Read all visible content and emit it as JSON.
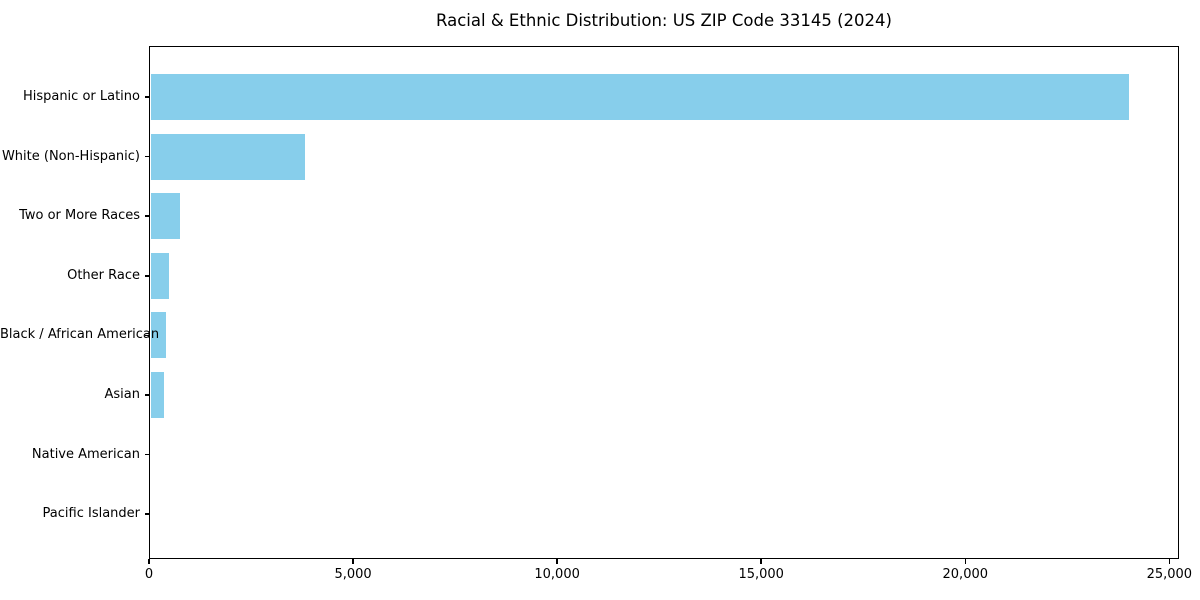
{
  "figure": {
    "title": "Racial & Ethnic Distribution: US ZIP Code 33145 (2024)"
  },
  "chart_data": {
    "type": "bar",
    "orientation": "horizontal",
    "title": "Racial & Ethnic Distribution: US ZIP Code 33145 (2024)",
    "categories": [
      "Hispanic or Latino",
      "White (Non-Hispanic)",
      "Two or More Races",
      "Other Race",
      "Black / African American",
      "Asian",
      "Native American",
      "Pacific Islander"
    ],
    "values": [
      24000,
      3800,
      730,
      460,
      380,
      330,
      0,
      0
    ],
    "xlabel": "",
    "ylabel": "",
    "xlim": [
      0,
      25200
    ],
    "xticks": {
      "values": [
        0,
        5000,
        10000,
        15000,
        20000,
        25000
      ],
      "labels": [
        "0",
        "5,000",
        "10,000",
        "15,000",
        "20,000",
        "25,000"
      ]
    },
    "bar_color": "#87CEEB",
    "axis_color": "#000000",
    "grid": false,
    "legend": null
  }
}
